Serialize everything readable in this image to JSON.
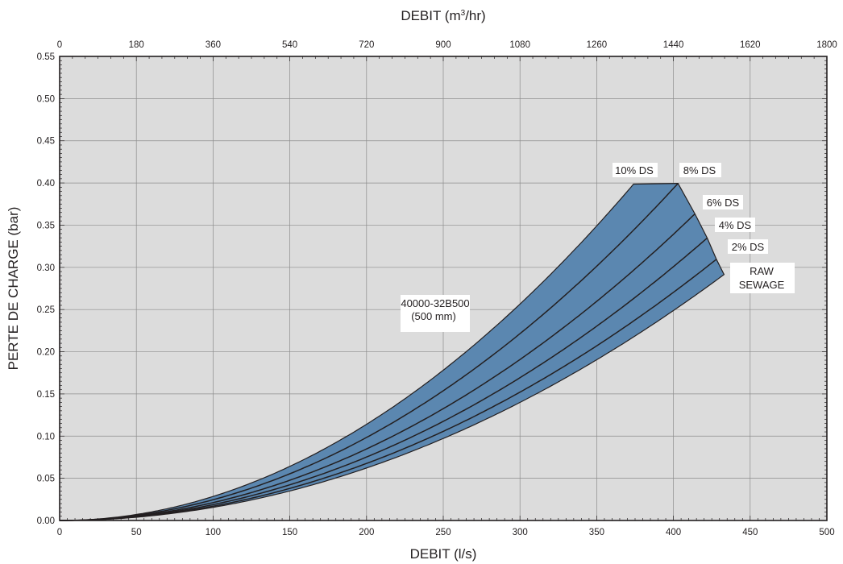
{
  "chart_data": {
    "type": "area",
    "xlabel": "DEBIT (l/s)",
    "x2label_prefix": "DEBIT (m",
    "x2label_sup": "3",
    "x2label_suffix": "/hr)",
    "ylabel": "PERTE DE CHARGE (bar)",
    "xlim": [
      0,
      500
    ],
    "ylim": [
      0,
      0.55
    ],
    "x2lim": [
      0,
      1800
    ],
    "x_ticks": [
      "0",
      "50",
      "100",
      "150",
      "200",
      "250",
      "300",
      "350",
      "400",
      "450",
      "500"
    ],
    "x2_ticks": [
      "0",
      "180",
      "360",
      "540",
      "720",
      "900",
      "1080",
      "1260",
      "1440",
      "1620",
      "1800"
    ],
    "y_ticks": [
      "0.00",
      "0.05",
      "0.10",
      "0.15",
      "0.20",
      "0.25",
      "0.30",
      "0.35",
      "0.40",
      "0.45",
      "0.50",
      "0.55"
    ],
    "grid": true,
    "band_color": "#5b87b0",
    "plot_bg": "#dcdcdc",
    "model_label_line1": "40000-32B500",
    "model_label_line2": "(500 mm)",
    "series": [
      {
        "name": "10% DS",
        "coef": 2.85e-06,
        "x_end": 374
      },
      {
        "name": "8% DS",
        "coef": 2.46e-06,
        "x_end": 403
      },
      {
        "name": "6% DS",
        "coef": 2.12e-06,
        "x_end": 414
      },
      {
        "name": "4% DS",
        "coef": 1.88e-06,
        "x_end": 422
      },
      {
        "name": "2% DS",
        "coef": 1.69e-06,
        "x_end": 428
      },
      {
        "name": "RAW SEWAGE",
        "coef": 1.555e-06,
        "x_end": 433
      }
    ],
    "labels": {
      "ds10": "10% DS",
      "ds8": "8% DS",
      "ds6": "6% DS",
      "ds4": "4% DS",
      "ds2": "2% DS",
      "raw1": "RAW",
      "raw2": "SEWAGE"
    }
  }
}
